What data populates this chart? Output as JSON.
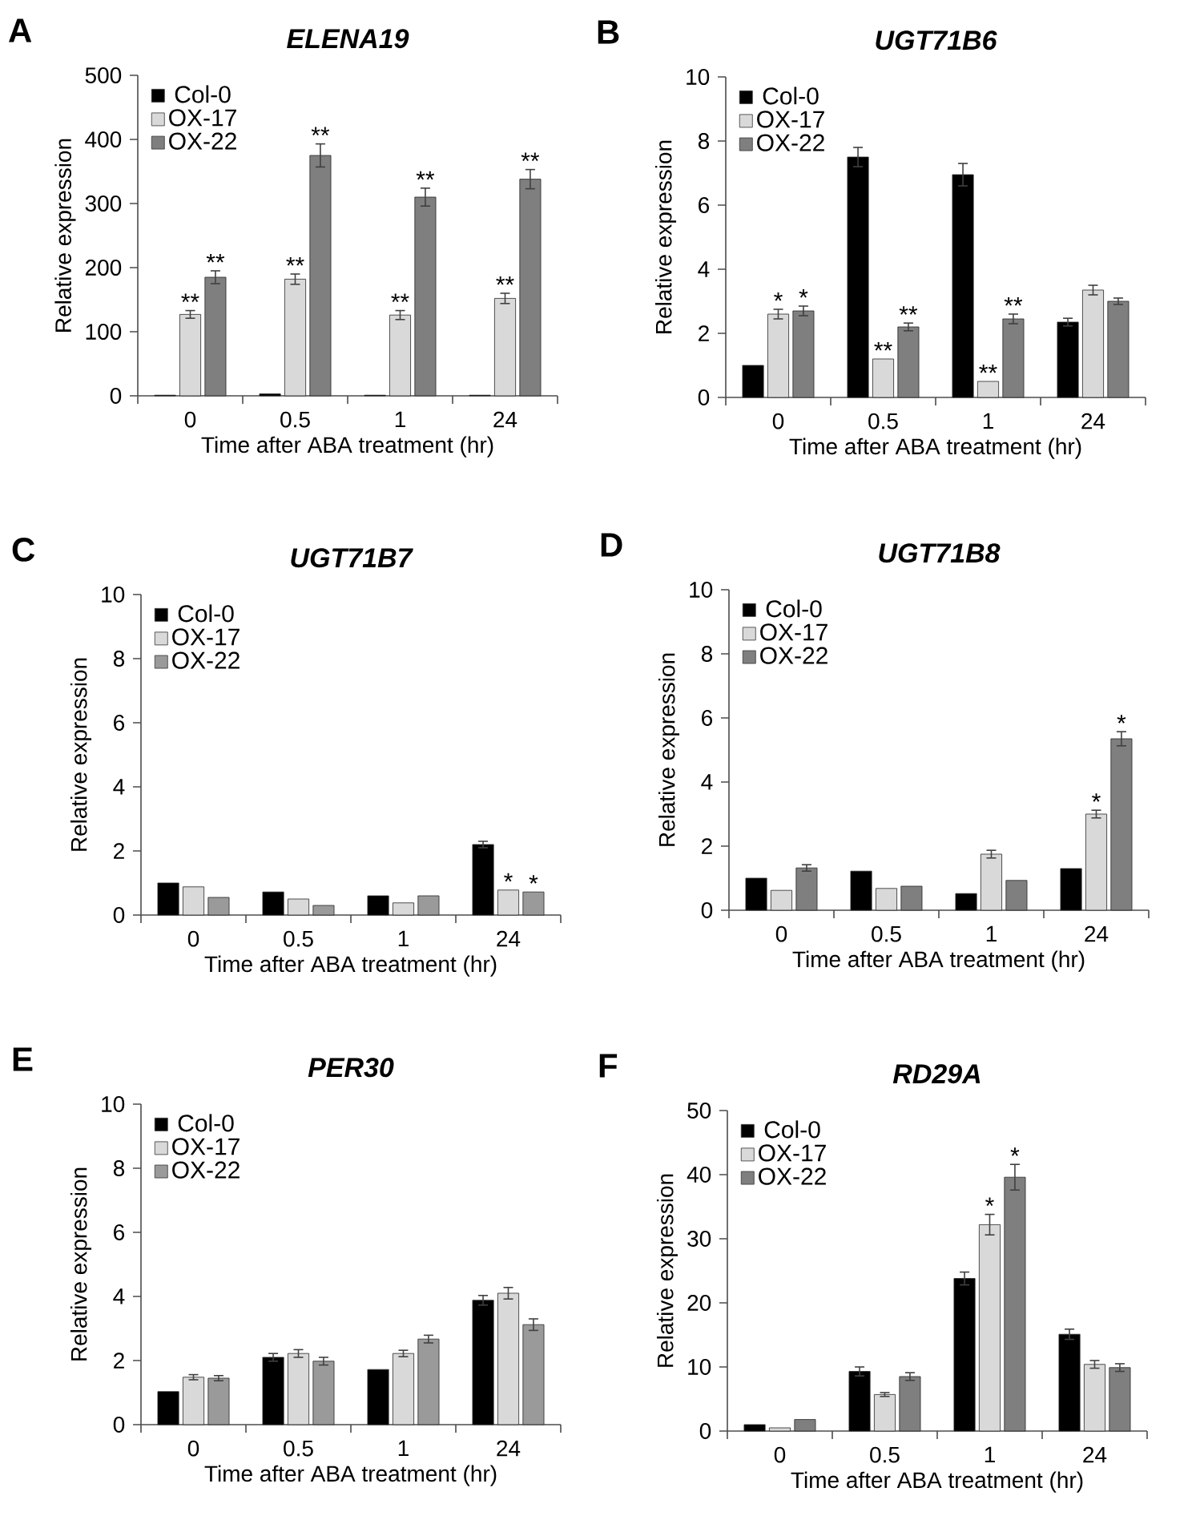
{
  "chart_data": [
    {
      "type": "bar",
      "title": "ELENA19",
      "categories": [
        "0",
        "0.5",
        "1",
        "24"
      ],
      "xlabel": "Time after ABA treatment (hr)",
      "ylabel": "Relative expression",
      "ylim": [
        0,
        500
      ],
      "yticks": [
        0,
        100,
        200,
        300,
        400,
        500
      ],
      "legend": "top left",
      "series": [
        {
          "name": "Col-0",
          "color": "#000000",
          "values": [
            1,
            3,
            1,
            1
          ]
        },
        {
          "name": "OX-17",
          "color": "#d9d9d9",
          "values": [
            127,
            182,
            126,
            152
          ],
          "errors": [
            6,
            8,
            7,
            8
          ]
        },
        {
          "name": "OX-22",
          "color": "#7f7f7f",
          "values": [
            185,
            375,
            310,
            338
          ],
          "errors": [
            10,
            18,
            14,
            15
          ]
        }
      ],
      "annotations": [
        "A",
        {
          "text": "**",
          "x": "0",
          "y": 127
        },
        {
          "text": "**",
          "y": 185
        },
        {
          "text": "**",
          "x": "0.5",
          "y": 182
        },
        {
          "text": "**",
          "y": 375
        },
        {
          "text": "**",
          "x": "1",
          "y": 126
        },
        {
          "text": "**",
          "y": 310
        },
        {
          "text": "**",
          "x": "24",
          "y": 152
        },
        {
          "text": "**",
          "y": 338
        }
      ]
    },
    {
      "type": "bar",
      "title": "UGT71B6",
      "categories": [
        "0",
        "0.5",
        "1",
        "24"
      ],
      "xlabel": "Time after ABA treatment (hr)",
      "ylabel": "Relative expression",
      "ylim": [
        0,
        10
      ],
      "yticks": [
        0,
        2,
        4,
        6,
        8,
        10
      ],
      "legend": "top left",
      "series": [
        {
          "name": "Col-0",
          "color": "#000000",
          "values": [
            1.0,
            7.5,
            6.95,
            2.35
          ],
          "errors": [
            null,
            0.3,
            0.35,
            0.12
          ]
        },
        {
          "name": "OX-17",
          "color": "#d9d9d9",
          "values": [
            2.6,
            1.2,
            0.5,
            3.35
          ],
          "errors": [
            0.15,
            null,
            null,
            0.15
          ]
        },
        {
          "name": "OX-22",
          "color": "#7f7f7f",
          "values": [
            2.7,
            2.2,
            2.45,
            3.0
          ],
          "errors": [
            0.15,
            0.12,
            0.15,
            0.1
          ]
        }
      ],
      "annotations": [
        "B",
        {
          "text": "*",
          "x": "0",
          "y": 2.6
        },
        {
          "text": "*",
          "x": "0",
          "y": 2.7
        },
        {
          "text": "**",
          "x": "0.5",
          "y": 1.2
        },
        {
          "text": "**",
          "y": 2.2
        },
        {
          "text": "**",
          "x": "1",
          "y": 0.5
        },
        {
          "text": "**",
          "y": 2.45
        }
      ]
    },
    {
      "type": "bar",
      "title": "UGT71B7",
      "categories": [
        "0",
        "0.5",
        "1",
        "24"
      ],
      "xlabel": "Time after ABA treatment (hr)",
      "ylabel": "Relative expression",
      "ylim": [
        0,
        10
      ],
      "yticks": [
        0,
        2,
        4,
        6,
        8,
        10
      ],
      "legend": "top left",
      "series": [
        {
          "name": "Col-0",
          "color": "#000000",
          "values": [
            1.0,
            0.72,
            0.6,
            2.2
          ],
          "errors": [
            null,
            null,
            null,
            0.1
          ]
        },
        {
          "name": "OX-17",
          "color": "#d9d9d9",
          "values": [
            0.88,
            0.5,
            0.38,
            0.78
          ]
        },
        {
          "name": "OX-22",
          "color": "#9a9a9a",
          "values": [
            0.55,
            0.3,
            0.6,
            0.72
          ]
        }
      ],
      "annotations": [
        "C",
        {
          "text": "*",
          "x": "24",
          "y": 0.78
        },
        {
          "text": "*",
          "x": "24",
          "y": 0.72
        }
      ]
    },
    {
      "type": "bar",
      "title": "UGT71B8",
      "categories": [
        "0",
        "0.5",
        "1",
        "24"
      ],
      "xlabel": "Time after ABA treatment (hr)",
      "ylabel": "Relative expression",
      "ylim": [
        0,
        10
      ],
      "yticks": [
        0,
        2,
        4,
        6,
        8,
        10
      ],
      "legend": "top left",
      "series": [
        {
          "name": "Col-0",
          "color": "#000000",
          "values": [
            1.0,
            1.22,
            0.52,
            1.3
          ]
        },
        {
          "name": "OX-17",
          "color": "#d9d9d9",
          "values": [
            0.62,
            0.68,
            1.75,
            3.0
          ],
          "errors": [
            null,
            null,
            0.12,
            0.12
          ]
        },
        {
          "name": "OX-22",
          "color": "#7f7f7f",
          "values": [
            1.32,
            0.75,
            0.93,
            5.35
          ],
          "errors": [
            0.1,
            null,
            null,
            0.22
          ]
        }
      ],
      "annotations": [
        "D",
        {
          "text": "*",
          "x": "24",
          "y": 3.0
        },
        {
          "text": "*",
          "y": 5.35
        }
      ]
    },
    {
      "type": "bar",
      "title": "PER30",
      "categories": [
        "0",
        "0.5",
        "1",
        "24"
      ],
      "xlabel": "Time after ABA treatment (hr)",
      "ylabel": "Relative expression",
      "ylim": [
        0,
        10
      ],
      "yticks": [
        0,
        2,
        4,
        6,
        8,
        10
      ],
      "legend": "top left",
      "series": [
        {
          "name": "Col-0",
          "color": "#000000",
          "values": [
            1.03,
            2.1,
            1.72,
            3.88
          ],
          "errors": [
            null,
            0.12,
            null,
            0.15
          ]
        },
        {
          "name": "OX-17",
          "color": "#d9d9d9",
          "values": [
            1.48,
            2.22,
            2.22,
            4.1
          ],
          "errors": [
            0.08,
            0.12,
            0.1,
            0.18
          ]
        },
        {
          "name": "OX-22",
          "color": "#9a9a9a",
          "values": [
            1.45,
            1.98,
            2.67,
            3.12
          ],
          "errors": [
            0.08,
            0.12,
            0.12,
            0.18
          ]
        }
      ],
      "annotations": [
        "E"
      ]
    },
    {
      "type": "bar",
      "title": "RD29A",
      "categories": [
        "0",
        "0.5",
        "1",
        "24"
      ],
      "xlabel": "Time after ABA treatment (hr)",
      "ylabel": "Relative expression",
      "ylim": [
        0,
        50
      ],
      "yticks": [
        0,
        10,
        20,
        30,
        40,
        50
      ],
      "legend": "top left",
      "series": [
        {
          "name": "Col-0",
          "color": "#000000",
          "values": [
            1.0,
            9.3,
            23.8,
            15.1
          ],
          "errors": [
            null,
            0.7,
            1.0,
            0.8
          ]
        },
        {
          "name": "OX-17",
          "color": "#d9d9d9",
          "values": [
            0.5,
            5.7,
            32.2,
            10.4
          ],
          "errors": [
            null,
            0.3,
            1.6,
            0.6
          ]
        },
        {
          "name": "OX-22",
          "color": "#7f7f7f",
          "values": [
            1.8,
            8.5,
            39.6,
            9.9
          ],
          "errors": [
            null,
            0.6,
            2.0,
            0.6
          ]
        }
      ],
      "annotations": [
        "F",
        {
          "text": "*",
          "x": "1",
          "y": 32.2
        },
        {
          "text": "*",
          "y": 39.6
        }
      ]
    }
  ]
}
